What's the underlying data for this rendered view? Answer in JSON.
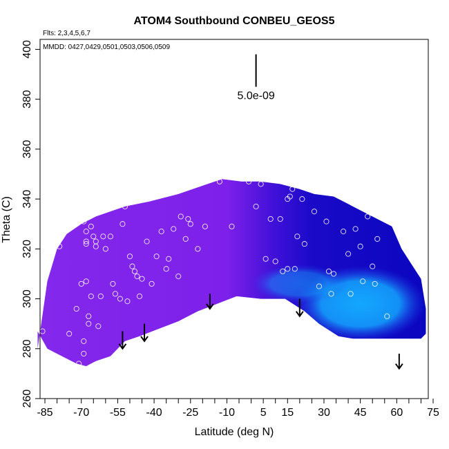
{
  "chart_data": {
    "type": "heatmap",
    "title": "ATOM4 Southbound CONBEU_GEOS5",
    "flights_label": "Flts: 2,3,4,5,6,7",
    "dates_label": "MMDD: 0427,0429,0501,0503,0506,0509",
    "xlabel": "Latitude (deg N)",
    "ylabel": "Theta (C)",
    "xlim": [
      -87,
      73
    ],
    "ylim": [
      260,
      404
    ],
    "x_tick_labels": [
      "-85",
      "-70",
      "-55",
      "-40",
      "-25",
      "-10",
      "5",
      "15",
      "30",
      "45",
      "60",
      "75"
    ],
    "x_tick_values": [
      -85,
      -70,
      -55,
      -40,
      -25,
      -10,
      5,
      15,
      30,
      45,
      60,
      75
    ],
    "x_minor_ticks": [
      -80,
      -75,
      -65,
      -60,
      -50,
      -45,
      -35,
      -30,
      -20,
      -15,
      -5,
      0,
      10,
      20,
      25,
      35,
      40,
      50,
      55,
      65,
      70
    ],
    "y_tick_labels": [
      "260",
      "280",
      "300",
      "320",
      "340",
      "360",
      "380",
      "400"
    ],
    "y_tick_values": [
      260,
      280,
      300,
      320,
      340,
      360,
      380,
      400
    ],
    "scale_bar_label": "5.0e-09",
    "scale_bar_position": {
      "x": 2,
      "y_top": 398,
      "y_bottom": 385
    },
    "arrows": [
      {
        "x": -53,
        "y_top": 287,
        "y_bottom": 280
      },
      {
        "x": -44,
        "y_top": 290,
        "y_bottom": 283
      },
      {
        "x": -17,
        "y_top": 302,
        "y_bottom": 296
      },
      {
        "x": 20,
        "y_top": 300,
        "y_bottom": 293
      },
      {
        "x": 61,
        "y_top": 278,
        "y_bottom": 272
      }
    ],
    "region": {
      "top_boundary": [
        [
          -88,
          280
        ],
        [
          -84,
          307
        ],
        [
          -80,
          320
        ],
        [
          -76,
          326
        ],
        [
          -70,
          330
        ],
        [
          -64,
          333
        ],
        [
          -52,
          337
        ],
        [
          -42,
          339
        ],
        [
          -30,
          342
        ],
        [
          -18,
          346
        ],
        [
          -12,
          348
        ],
        [
          -4,
          347
        ],
        [
          4,
          347
        ],
        [
          12,
          346
        ],
        [
          20,
          344
        ],
        [
          26,
          342
        ],
        [
          34,
          341
        ],
        [
          40,
          338
        ],
        [
          46,
          335
        ],
        [
          52,
          332
        ],
        [
          58,
          329
        ],
        [
          62,
          320
        ],
        [
          66,
          314
        ],
        [
          70,
          308
        ],
        [
          72,
          296
        ],
        [
          72,
          286
        ]
      ],
      "bottom_boundary": [
        [
          -88,
          287
        ],
        [
          -84,
          280
        ],
        [
          -78,
          277
        ],
        [
          -72,
          274
        ],
        [
          -68,
          273
        ],
        [
          -64,
          275
        ],
        [
          -58,
          277
        ],
        [
          -52,
          283
        ],
        [
          -46,
          285
        ],
        [
          -38,
          288
        ],
        [
          -30,
          291
        ],
        [
          -22,
          295
        ],
        [
          -14,
          298
        ],
        [
          -6,
          301
        ],
        [
          4,
          300
        ],
        [
          14,
          300
        ],
        [
          22,
          295
        ],
        [
          28,
          290
        ],
        [
          36,
          285
        ],
        [
          42,
          284
        ],
        [
          50,
          284
        ],
        [
          58,
          284
        ],
        [
          64,
          284
        ],
        [
          70,
          284
        ],
        [
          72,
          286
        ]
      ],
      "color_stops": [
        {
          "x": -88,
          "color": "#8428ec"
        },
        {
          "x": -10,
          "color": "#7d20ea"
        },
        {
          "x": 10,
          "color": "#3e10d8"
        },
        {
          "x": 25,
          "color": "#1a0ac8"
        },
        {
          "x": 72,
          "color": "#0a06c0"
        }
      ],
      "bright_zone_color_center": "#13a8ff",
      "bright_zone_color_edge": "#1f40e8"
    },
    "observations": [
      [
        -86,
        287
      ],
      [
        -79,
        321
      ],
      [
        -75,
        286
      ],
      [
        -72,
        296
      ],
      [
        -71,
        274
      ],
      [
        -70,
        306
      ],
      [
        -69,
        283
      ],
      [
        -69,
        278
      ],
      [
        -69,
        331
      ],
      [
        -68,
        327
      ],
      [
        -68,
        322
      ],
      [
        -68,
        323
      ],
      [
        -68,
        307
      ],
      [
        -67,
        293
      ],
      [
        -67,
        290
      ],
      [
        -66,
        301
      ],
      [
        -66,
        329
      ],
      [
        -65,
        325
      ],
      [
        -64,
        321
      ],
      [
        -64,
        323
      ],
      [
        -63,
        289
      ],
      [
        -62,
        301
      ],
      [
        -61,
        325
      ],
      [
        -60,
        320
      ],
      [
        -58,
        325
      ],
      [
        -57,
        306
      ],
      [
        -56,
        302
      ],
      [
        -54,
        300
      ],
      [
        -53,
        330
      ],
      [
        -52,
        337
      ],
      [
        -51,
        299
      ],
      [
        -50,
        317
      ],
      [
        -49,
        313
      ],
      [
        -48,
        311
      ],
      [
        -47,
        309
      ],
      [
        -46,
        301
      ],
      [
        -45,
        308
      ],
      [
        -43,
        323
      ],
      [
        -41,
        306
      ],
      [
        -39,
        317
      ],
      [
        -37,
        327
      ],
      [
        -35,
        312
      ],
      [
        -34,
        316
      ],
      [
        -32,
        328
      ],
      [
        -30,
        309
      ],
      [
        -29,
        333
      ],
      [
        -27,
        324
      ],
      [
        -26,
        332
      ],
      [
        -25,
        330
      ],
      [
        -22,
        320
      ],
      [
        -19,
        329
      ],
      [
        -13,
        347
      ],
      [
        -8,
        329
      ],
      [
        -1,
        347
      ],
      [
        2,
        337
      ],
      [
        4,
        346
      ],
      [
        6,
        316
      ],
      [
        8,
        332
      ],
      [
        10,
        315
      ],
      [
        12,
        332
      ],
      [
        13,
        311
      ],
      [
        15,
        340
      ],
      [
        15,
        312
      ],
      [
        16,
        341
      ],
      [
        17,
        344
      ],
      [
        18,
        312
      ],
      [
        19,
        325
      ],
      [
        21,
        340
      ],
      [
        22,
        322
      ],
      [
        24,
        345
      ],
      [
        26,
        335
      ],
      [
        28,
        305
      ],
      [
        31,
        331
      ],
      [
        32,
        311
      ],
      [
        33,
        302
      ],
      [
        34,
        310
      ],
      [
        38,
        327
      ],
      [
        40,
        318
      ],
      [
        41,
        302
      ],
      [
        43,
        328
      ],
      [
        45,
        321
      ],
      [
        46,
        307
      ],
      [
        48,
        333
      ],
      [
        50,
        313
      ],
      [
        51,
        306
      ],
      [
        52,
        324
      ],
      [
        56,
        293
      ]
    ]
  }
}
